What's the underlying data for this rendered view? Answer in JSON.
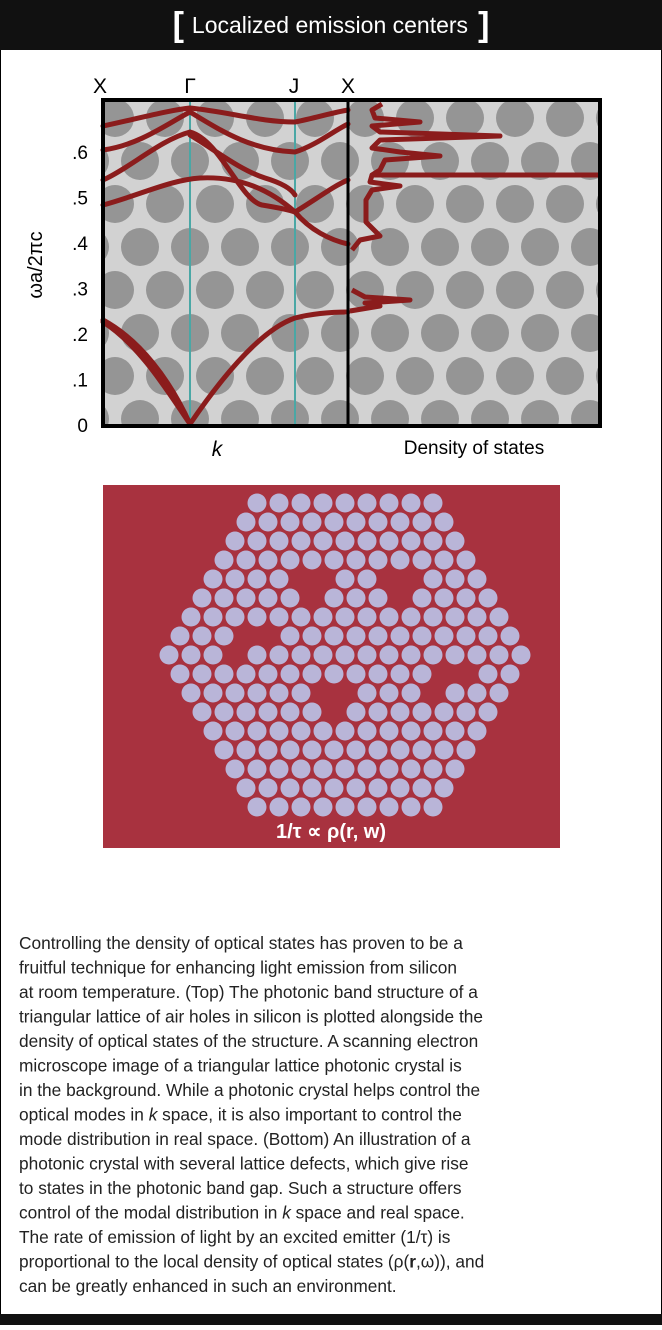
{
  "header": {
    "bracket_open": "[",
    "title": "Localized emission centers",
    "bracket_close": "]"
  },
  "band_figure": {
    "top_labels": [
      "X",
      "Γ",
      "J",
      "X"
    ],
    "y_ticks": [
      ".6",
      ".5",
      ".4",
      ".3",
      ".2",
      ".1",
      "0"
    ],
    "y_label": "ωa/2πc",
    "x_label": "k",
    "dos_label": "Density of states"
  },
  "crystal_figure": {
    "caption": [
      "1/τ ∝ ρ(",
      "r",
      ", w)"
    ]
  },
  "paragraph": {
    "lines": [
      [
        "Controlling the density of optical states has proven to be a"
      ],
      [
        "fruitful technique for enhancing light emission from silicon"
      ],
      [
        "at room temperature. (Top) The photonic band structure of a"
      ],
      [
        "triangular lattice of air holes in silicon is plotted alongside the"
      ],
      [
        "density of optical states of the structure. A scanning electron"
      ],
      [
        "microscope image of a triangular lattice photonic crystal is"
      ],
      [
        "in the background. While a photonic crystal helps control the"
      ],
      [
        "optical modes in ",
        {
          "text": "k",
          "style": "italic"
        },
        " space, it is also important to control the"
      ],
      [
        "mode distribution in real space. (Bottom) An illustration of a"
      ],
      [
        "photonic crystal with several lattice defects, which give rise"
      ],
      [
        "to states in the photonic band gap. Such a structure offers"
      ],
      [
        "control of the modal distribution in ",
        {
          "text": "k",
          "style": "italic"
        },
        " space and real space."
      ],
      [
        "The rate of emission of light by an excited emitter (1/τ) is"
      ],
      [
        "proportional to the local density of optical states (ρ(",
        {
          "text": "r",
          "style": "bold"
        },
        ",ω)), and"
      ],
      [
        "can be greatly enhanced in such an environment."
      ]
    ]
  }
}
